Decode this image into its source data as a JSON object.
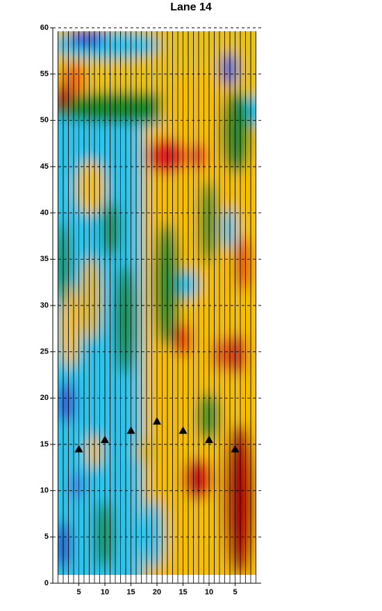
{
  "chart_data": {
    "type": "scatter",
    "title": "Lane 14",
    "x": [
      5,
      10,
      15,
      20,
      25,
      30,
      35
    ],
    "values": [
      14.5,
      15.5,
      16.5,
      17.5,
      16.5,
      15.5,
      14.5
    ],
    "color": "#000000",
    "marker": "triangle",
    "xlim": [
      0,
      40
    ],
    "xticks": [
      5,
      10,
      15,
      20,
      {
        "value": 25,
        "label": "15"
      },
      {
        "value": 30,
        "label": "10"
      },
      {
        "value": 35,
        "label": "5"
      }
    ],
    "ylim": [
      0,
      60
    ],
    "yticks": [
      0,
      5,
      10,
      15,
      20,
      25,
      30,
      35,
      40,
      45,
      50,
      55,
      60
    ],
    "grid": true
  }
}
